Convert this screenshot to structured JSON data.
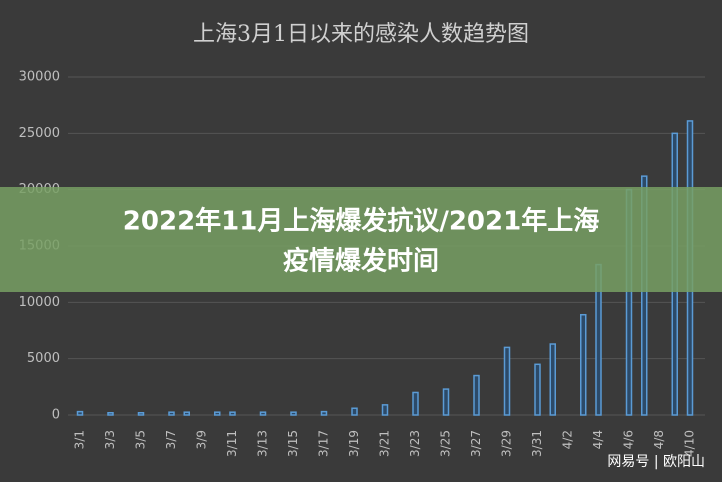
{
  "chart_data": {
    "type": "bar",
    "title": "上海3月1日以来的感染人数趋势图",
    "categories": [
      "3/1",
      null,
      "3/3",
      null,
      "3/5",
      null,
      "3/7",
      null,
      "3/9",
      null,
      "3/11",
      null,
      "3/13",
      null,
      "3/15",
      null,
      "3/17",
      null,
      "3/19",
      null,
      "3/21",
      null,
      "3/23",
      null,
      "3/25",
      null,
      "3/27",
      null,
      "3/29",
      null,
      "3/31",
      null,
      "4/2",
      null,
      "4/4",
      null,
      "4/6",
      null,
      "4/8",
      null,
      "4/10"
    ],
    "values": [
      300,
      null,
      200,
      null,
      200,
      null,
      250,
      250,
      null,
      250,
      250,
      null,
      250,
      null,
      250,
      null,
      300,
      null,
      600,
      null,
      900,
      null,
      2000,
      null,
      2300,
      null,
      3500,
      null,
      6000,
      null,
      4500,
      6300,
      null,
      8900,
      13350,
      null,
      20000,
      21200,
      null,
      25000,
      26100
    ],
    "color": "#5b9bd5",
    "ylim": [
      0,
      30000
    ],
    "yticks": [
      0,
      5000,
      10000,
      15000,
      20000,
      25000,
      30000
    ],
    "grid": true
  },
  "banner": [
    "2022年11月上海爆发抗议/2021年上海",
    "疫情爆发时间"
  ],
  "watermark": "网易号 | 欧阳山"
}
